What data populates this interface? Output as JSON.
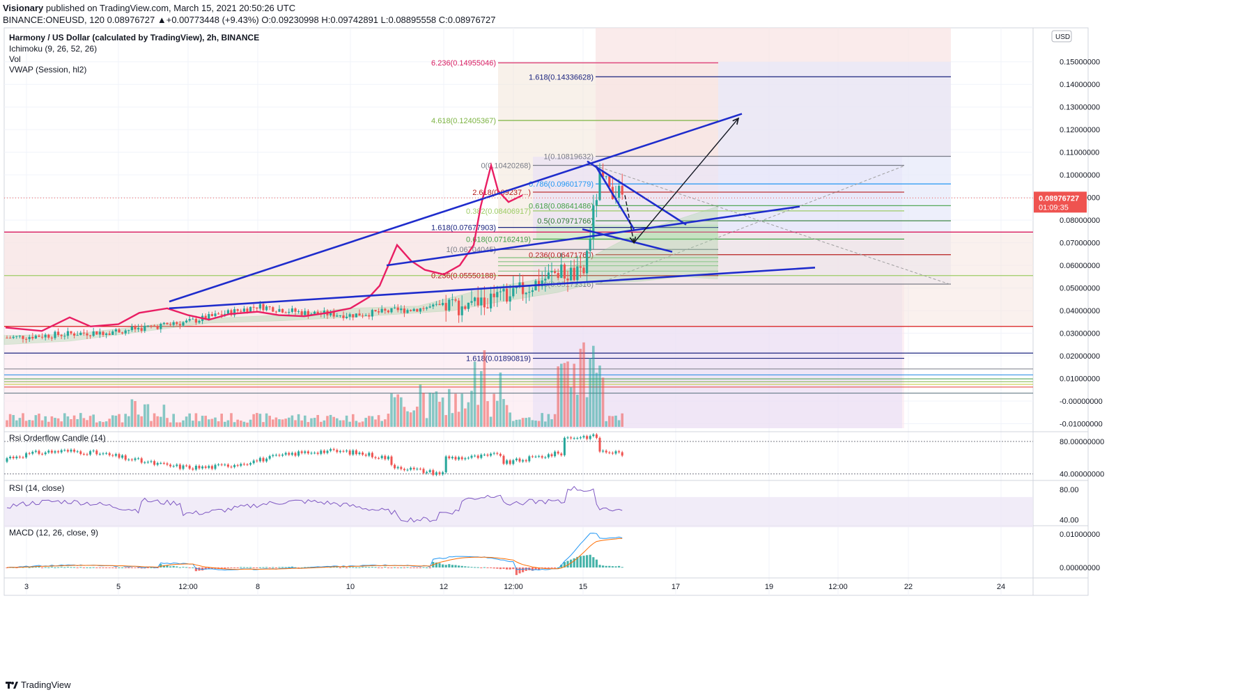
{
  "header": {
    "author": "Visionary",
    "publish_text": "published on TradingView.com, March 15, 2021 20:50:26 UTC",
    "symbol_line": "BINANCE:ONEUSD, 120",
    "last_line": "0.08976727 ▲+0.00773448 (+9.43%) O:0.09230998 H:0.09742891 L:0.08895558 C:0.08976727"
  },
  "legend": {
    "title": "Harmony / US Dollar (calculated by TradingView), 2h, BINANCE",
    "studies": [
      "Ichimoku (9, 26, 52, 26)",
      "Vol",
      "VWAP (Session, hl2)"
    ]
  },
  "price_axis": {
    "currency": "USD",
    "ticks": [
      "0.15000000",
      "0.14000000",
      "0.13000000",
      "0.12000000",
      "0.11000000",
      "0.10000000",
      "0.09000000",
      "0.08000000",
      "0.07000000",
      "0.06000000",
      "0.05000000",
      "0.04000000",
      "0.03000000",
      "0.02000000",
      "0.01000000",
      "-0.00000000",
      "-0.01000000"
    ],
    "current_price": "0.08976727",
    "countdown": "01:09:35"
  },
  "time_axis": {
    "ticks": [
      "3",
      "5",
      "12:00",
      "8",
      "10",
      "12",
      "12:00",
      "15",
      "17",
      "19",
      "12:00",
      "22",
      "24"
    ]
  },
  "fib_labels": [
    {
      "text": "6.236(0.14955046)",
      "color": "#d81b60",
      "price": 0.14955
    },
    {
      "text": "1.618(0.14336628)",
      "color": "#1a237e",
      "price": 0.14337
    },
    {
      "text": "4.618(0.12405367)",
      "color": "#7cb342",
      "price": 0.12405
    },
    {
      "text": "1(0.10819632)",
      "color": "#787b86",
      "price": 0.1082
    },
    {
      "text": "0(0.10420268)",
      "color": "#787b86",
      "price": 0.1042
    },
    {
      "text": "0.786(0.09601779)",
      "color": "#2196f3",
      "price": 0.09602
    },
    {
      "text": "2.618(0.09237...)",
      "color": "#b71c1c",
      "price": 0.09237
    },
    {
      "text": "0.618(0.08641486)",
      "color": "#43a047",
      "price": 0.08641
    },
    {
      "text": "0.382(0.08406917)",
      "color": "#9ccc65",
      "price": 0.08407
    },
    {
      "text": "0.5(0.07971766)",
      "color": "#2e7d32",
      "price": 0.07972
    },
    {
      "text": "1.618(0.07677903)",
      "color": "#1a237e",
      "price": 0.07678
    },
    {
      "text": "0.618(0.07162419)",
      "color": "#43a047",
      "price": 0.07162
    },
    {
      "text": "1(0.06704045)",
      "color": "#787b86",
      "price": 0.06704
    },
    {
      "text": "0.236(0.06471760)",
      "color": "#b71c1c",
      "price": 0.06472
    },
    {
      "text": "0.236(0.05550188)",
      "color": "#b71c1c",
      "price": 0.0555
    },
    {
      "text": "0(0.05171316)",
      "color": "#787b86",
      "price": 0.05171
    },
    {
      "text": "1.618(0.01890819)",
      "color": "#1a237e",
      "price": 0.01891
    }
  ],
  "panes": {
    "rsi_orderflow": {
      "title": "Rsi Orderflow Candle (14)",
      "ticks": [
        "80.00000000",
        "40.00000000"
      ]
    },
    "rsi": {
      "title": "RSI (14, close)",
      "ticks": [
        "80.00",
        "40.00"
      ]
    },
    "macd": {
      "title": "MACD (12, 26, close, 9)",
      "ticks": [
        "0.01000000",
        "0.00000000"
      ]
    }
  },
  "footer": {
    "brand": "TradingView"
  },
  "colors": {
    "up": "#26a69a",
    "down": "#ef5350",
    "trend": "#1e2ccc",
    "vwap": "#e91e63",
    "grid": "#f0f3fa",
    "rsi_line": "#7e57c2",
    "macd": "#2196f3",
    "signal": "#ff6d00"
  },
  "chart_data": {
    "type": "candlestick",
    "symbol": "ONEUSD",
    "timeframe": "2h",
    "ylim": [
      -0.012,
      0.165
    ],
    "approx_close_path": [
      {
        "x": "3",
        "y": 0.028
      },
      {
        "x": "4",
        "y": 0.031
      },
      {
        "x": "5",
        "y": 0.035
      },
      {
        "x": "6",
        "y": 0.042
      },
      {
        "x": "7",
        "y": 0.039
      },
      {
        "x": "8",
        "y": 0.038
      },
      {
        "x": "9",
        "y": 0.04
      },
      {
        "x": "10",
        "y": 0.042
      },
      {
        "x": "11",
        "y": 0.043
      },
      {
        "x": "12",
        "y": 0.047
      },
      {
        "x": "13",
        "y": 0.057
      },
      {
        "x": "14",
        "y": 0.055
      },
      {
        "x": "15",
        "y": 0.098
      },
      {
        "x": "15 (last)",
        "y": 0.0898
      }
    ],
    "vwap_peak": 0.1042,
    "last_close": 0.08976727
  }
}
